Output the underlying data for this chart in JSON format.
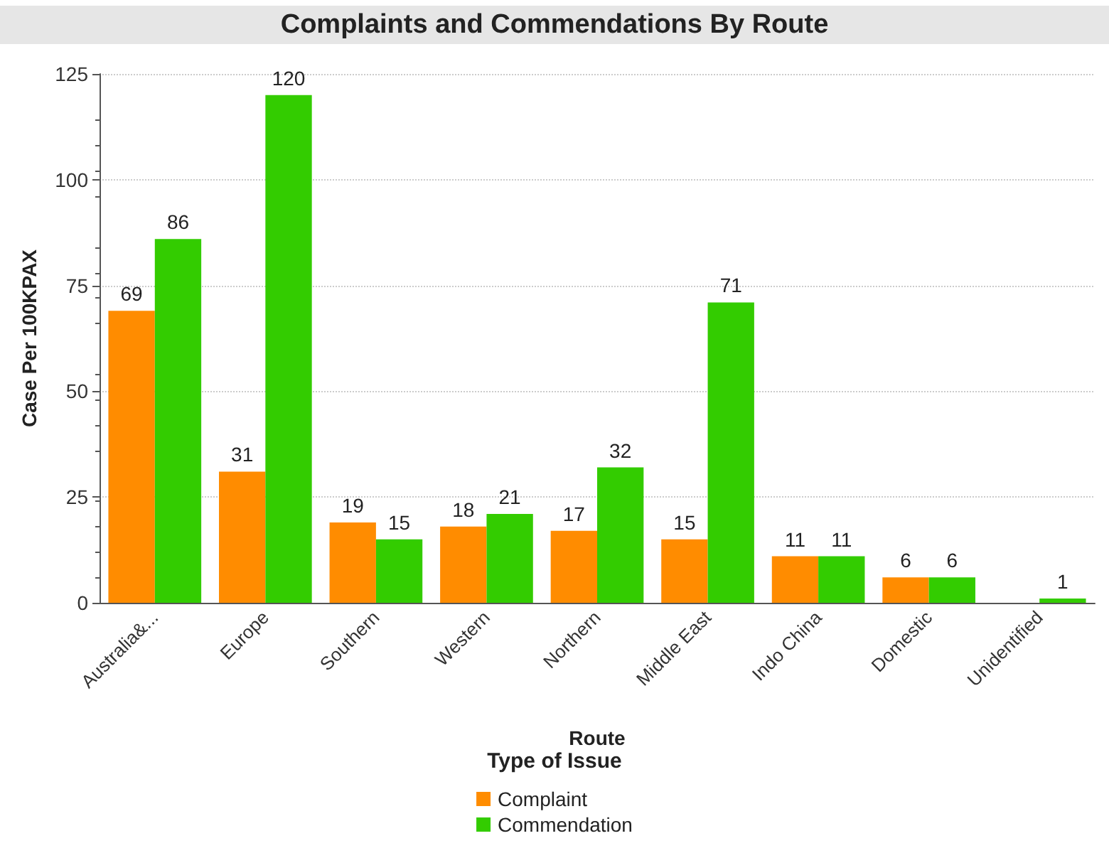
{
  "chart_data": {
    "type": "bar",
    "title": "Complaints and Commendations By Route",
    "xlabel": "Route",
    "ylabel": "Case Per 100KPAX",
    "legend_title": "Type of Issue",
    "categories": [
      "Australia&...",
      "Europe",
      "Southern",
      "Western",
      "Northern",
      "Middle East",
      "Indo China",
      "Domestic",
      "Unidentified"
    ],
    "series": [
      {
        "name": "Complaint",
        "color": "#ff8c00",
        "values": [
          69,
          31,
          19,
          18,
          17,
          15,
          11,
          6,
          null
        ]
      },
      {
        "name": "Commendation",
        "color": "#33cc00",
        "values": [
          86,
          120,
          15,
          21,
          32,
          71,
          11,
          6,
          1
        ]
      }
    ],
    "ylim": [
      0,
      125
    ],
    "yticks": [
      0,
      25,
      50,
      75,
      100,
      125
    ],
    "grid": "y",
    "legend": "bottom",
    "data_labels": true
  }
}
